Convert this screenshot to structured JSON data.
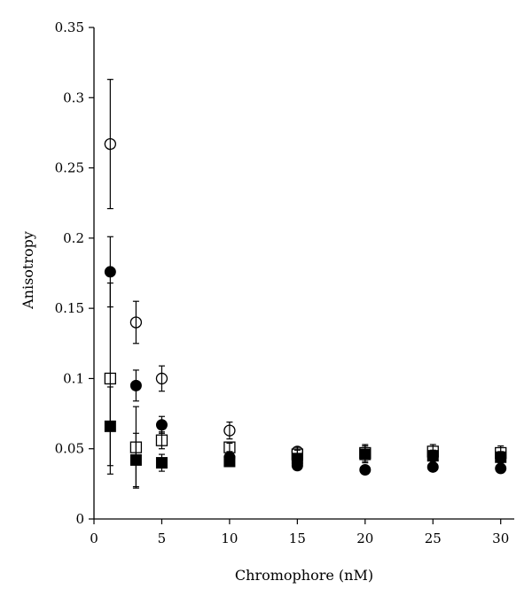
{
  "chart_data": {
    "type": "scatter",
    "title": "",
    "xlabel": "Chromophore (nM)",
    "ylabel": "Anisotropy",
    "xlim": [
      0,
      31
    ],
    "ylim": [
      0,
      0.35
    ],
    "x_ticks": [
      0,
      5,
      10,
      15,
      20,
      25,
      30
    ],
    "y_ticks": [
      0,
      0.05,
      0.1,
      0.15,
      0.2,
      0.25,
      0.3,
      0.35
    ],
    "x_tick_labels": [
      "0",
      "5",
      "10",
      "15",
      "20",
      "25",
      "30"
    ],
    "y_tick_labels": [
      "0",
      "0.05",
      "0.1",
      "0.15",
      "0.2",
      "0.25",
      "0.3",
      "0.35"
    ],
    "grid": false,
    "legend": "none",
    "series": [
      {
        "marker": "open-circle",
        "points": [
          {
            "x": 1.2,
            "y": 0.267,
            "err": 0.046
          },
          {
            "x": 3.1,
            "y": 0.14,
            "err": 0.015
          },
          {
            "x": 5.0,
            "y": 0.1,
            "err": 0.009
          },
          {
            "x": 10.0,
            "y": 0.063,
            "err": 0.006
          },
          {
            "x": 15.0,
            "y": 0.048,
            "err": 0.003
          }
        ]
      },
      {
        "marker": "filled-circle",
        "points": [
          {
            "x": 1.2,
            "y": 0.176,
            "err": 0.025
          },
          {
            "x": 3.1,
            "y": 0.095,
            "err": 0.011
          },
          {
            "x": 5.0,
            "y": 0.067,
            "err": 0.006
          },
          {
            "x": 10.0,
            "y": 0.044,
            "err": 0.003
          },
          {
            "x": 15.0,
            "y": 0.038,
            "err": 0.003
          },
          {
            "x": 20.0,
            "y": 0.035,
            "err": 0.002
          },
          {
            "x": 25.0,
            "y": 0.037,
            "err": 0.002
          },
          {
            "x": 30.0,
            "y": 0.036,
            "err": 0.002
          }
        ]
      },
      {
        "marker": "open-square",
        "points": [
          {
            "x": 1.2,
            "y": 0.1,
            "err": 0.068
          },
          {
            "x": 3.1,
            "y": 0.051,
            "err": 0.029
          },
          {
            "x": 5.0,
            "y": 0.056,
            "err": 0.006
          },
          {
            "x": 10.0,
            "y": 0.051,
            "err": 0.003
          },
          {
            "x": 15.0,
            "y": 0.046,
            "err": 0.003
          },
          {
            "x": 20.0,
            "y": 0.047,
            "err": 0.006
          },
          {
            "x": 25.0,
            "y": 0.048,
            "err": 0.005
          },
          {
            "x": 30.0,
            "y": 0.047,
            "err": 0.005
          }
        ]
      },
      {
        "marker": "filled-square",
        "points": [
          {
            "x": 1.2,
            "y": 0.066,
            "err": 0.028
          },
          {
            "x": 3.1,
            "y": 0.042,
            "err": 0.019
          },
          {
            "x": 5.0,
            "y": 0.04,
            "err": 0.006
          },
          {
            "x": 10.0,
            "y": 0.041,
            "err": 0.003
          },
          {
            "x": 15.0,
            "y": 0.043,
            "err": 0.003
          },
          {
            "x": 20.0,
            "y": 0.046,
            "err": 0.006
          },
          {
            "x": 25.0,
            "y": 0.045,
            "err": 0.004
          },
          {
            "x": 30.0,
            "y": 0.044,
            "err": 0.004
          }
        ]
      }
    ]
  }
}
